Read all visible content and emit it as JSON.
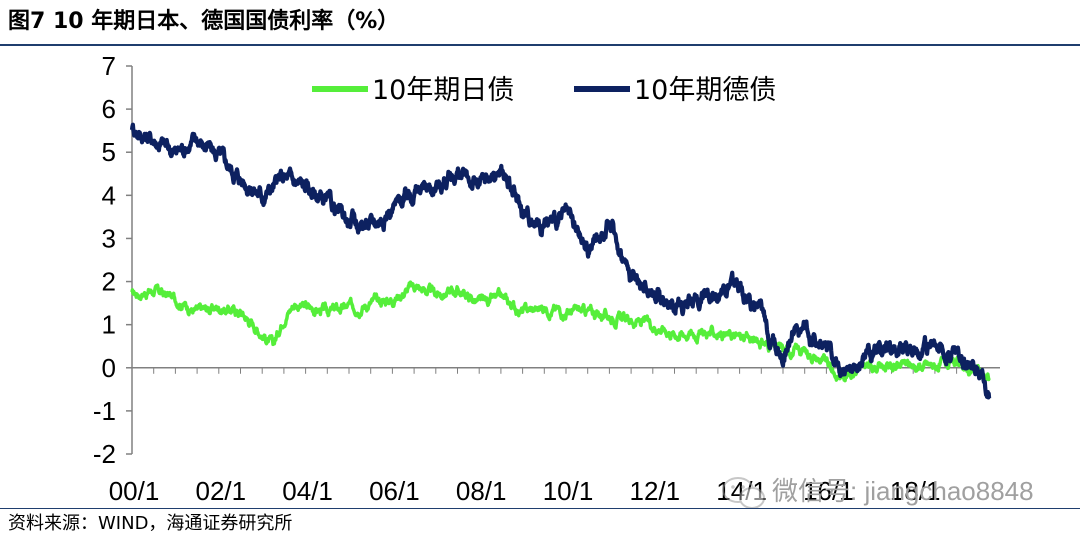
{
  "header": {
    "title": "图7   10 年期日本、德国国债利率（%）"
  },
  "footer": {
    "source": "资料来源：WIND，海通证券研究所"
  },
  "watermark": {
    "text": "微信号: jiangchao8848",
    "icon": "wechat-icon"
  },
  "chart_data": {
    "type": "line",
    "title": "",
    "xlabel": "",
    "ylabel": "",
    "ylim": [
      -2,
      7
    ],
    "yticks": [
      "7",
      "6",
      "5",
      "4",
      "3",
      "2",
      "1",
      "0",
      "-1",
      "-2"
    ],
    "xticks": [
      "00/1",
      "02/1",
      "04/1",
      "06/1",
      "08/1",
      "10/1",
      "12/1",
      "14/1",
      "16/1",
      "18/1"
    ],
    "legend_position": "top",
    "series": [
      {
        "name": "10年期日债",
        "color": "#55ee3a",
        "x": [
          2000.0,
          2000.5,
          2001.0,
          2001.5,
          2002.0,
          2002.5,
          2003.0,
          2003.25,
          2003.5,
          2003.75,
          2004.0,
          2004.5,
          2005.0,
          2005.5,
          2006.0,
          2006.5,
          2007.0,
          2007.5,
          2008.0,
          2008.5,
          2009.0,
          2009.5,
          2010.0,
          2010.5,
          2011.0,
          2011.5,
          2012.0,
          2012.5,
          2013.0,
          2013.5,
          2014.0,
          2014.5,
          2015.0,
          2015.5,
          2016.0,
          2016.25,
          2016.5,
          2017.0,
          2017.5,
          2018.0,
          2018.5,
          2019.0,
          2019.5,
          2019.75
        ],
        "values": [
          1.7,
          1.8,
          1.6,
          1.3,
          1.4,
          1.3,
          0.8,
          0.5,
          1.2,
          1.5,
          1.4,
          1.3,
          1.4,
          1.5,
          1.6,
          1.9,
          1.7,
          1.8,
          1.5,
          1.6,
          1.3,
          1.4,
          1.3,
          1.3,
          1.2,
          1.1,
          1.0,
          0.8,
          0.8,
          0.8,
          0.7,
          0.6,
          0.4,
          0.4,
          0.1,
          -0.2,
          -0.1,
          0.05,
          0.05,
          0.05,
          0.05,
          0.05,
          -0.1,
          -0.25
        ]
      },
      {
        "name": "10年期德债",
        "color": "#0d2160",
        "x": [
          2000.0,
          2000.25,
          2000.5,
          2001.0,
          2001.5,
          2002.0,
          2002.5,
          2003.0,
          2003.5,
          2004.0,
          2004.5,
          2005.0,
          2005.5,
          2006.0,
          2006.5,
          2007.0,
          2007.5,
          2008.0,
          2008.5,
          2009.0,
          2009.5,
          2010.0,
          2010.5,
          2011.0,
          2011.5,
          2012.0,
          2012.5,
          2013.0,
          2013.5,
          2014.0,
          2014.5,
          2015.0,
          2015.25,
          2015.5,
          2016.0,
          2016.5,
          2017.0,
          2017.5,
          2018.0,
          2018.5,
          2019.0,
          2019.5,
          2019.75
        ],
        "values": [
          5.6,
          5.4,
          5.3,
          5.0,
          5.3,
          4.9,
          4.4,
          4.0,
          4.4,
          4.2,
          3.8,
          3.4,
          3.3,
          3.7,
          4.1,
          4.2,
          4.5,
          4.2,
          4.6,
          3.6,
          3.3,
          3.5,
          2.7,
          3.4,
          2.1,
          1.8,
          1.4,
          1.6,
          1.8,
          1.9,
          1.2,
          0.3,
          1.0,
          0.8,
          0.4,
          -0.15,
          0.35,
          0.4,
          0.5,
          0.5,
          0.3,
          0.05,
          -0.6
        ]
      }
    ]
  }
}
